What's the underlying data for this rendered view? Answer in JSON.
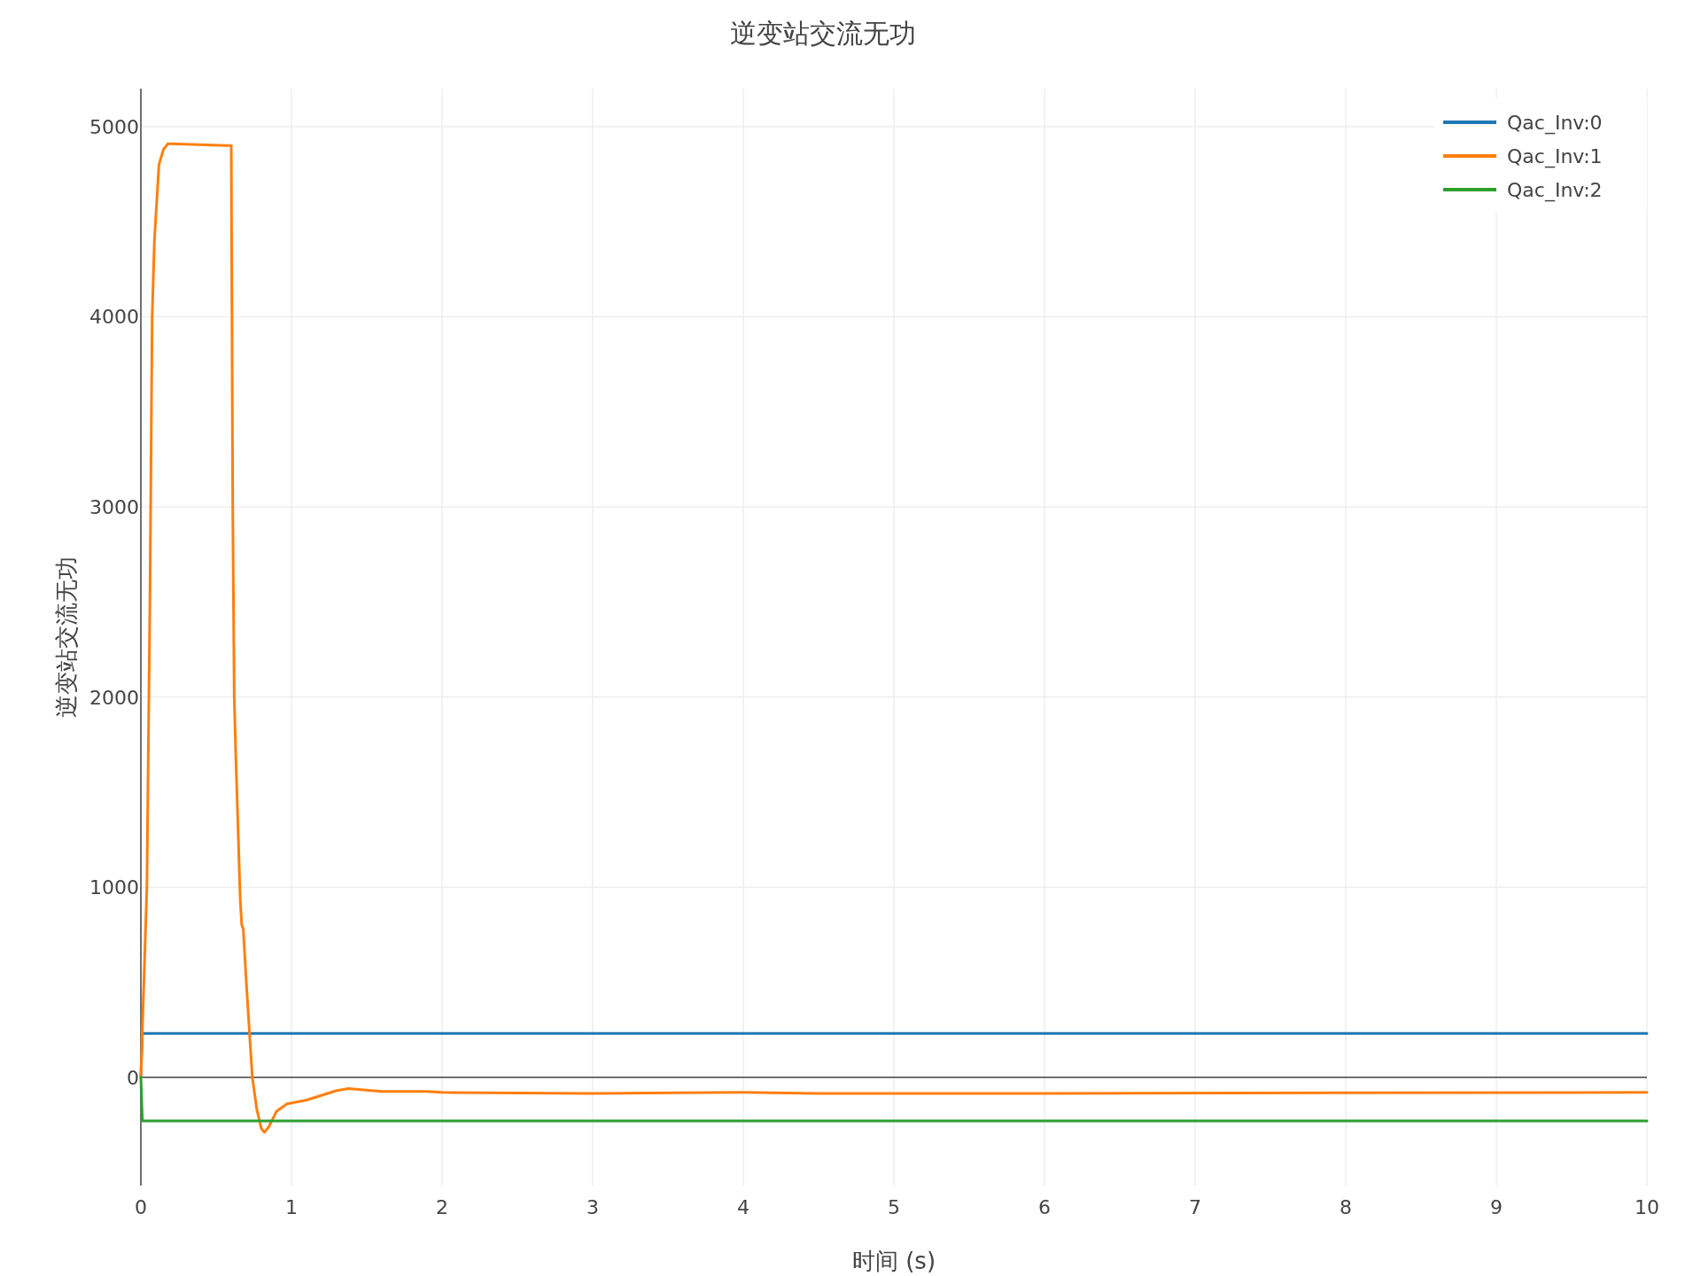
{
  "chart_data": {
    "type": "line",
    "title": "逆变站交流无功",
    "xlabel": "时间 (s)",
    "ylabel": "逆变站交流无功",
    "xlim": [
      0,
      10
    ],
    "ylim": [
      -570,
      5200
    ],
    "xticks": [
      0,
      1,
      2,
      3,
      4,
      5,
      6,
      7,
      8,
      9,
      10
    ],
    "yticks": [
      0,
      1000,
      2000,
      3000,
      4000,
      5000
    ],
    "grid": true,
    "legend": "top right",
    "series": [
      {
        "name": "Qac_Inv:0",
        "color": "#1f77b4",
        "x": [
          0,
          0.01,
          10
        ],
        "values": [
          0,
          230,
          230
        ]
      },
      {
        "name": "Qac_Inv:1",
        "color": "#ff7f0e",
        "x": [
          0,
          0.04,
          0.06,
          0.075,
          0.09,
          0.12,
          0.15,
          0.18,
          0.2,
          0.6,
          0.61,
          0.62,
          0.63,
          0.66,
          0.67,
          0.68,
          0.7,
          0.74,
          0.77,
          0.8,
          0.82,
          0.85,
          0.9,
          0.97,
          1.1,
          1.3,
          1.38,
          1.6,
          1.9,
          2.0,
          3,
          4,
          4.5,
          6,
          8,
          10
        ],
        "values": [
          0,
          1000,
          2500,
          4000,
          4400,
          4800,
          4880,
          4910,
          4910,
          4900,
          3000,
          2000,
          1700,
          930,
          800,
          780,
          500,
          0,
          -170,
          -270,
          -290,
          -260,
          -180,
          -140,
          -120,
          -70,
          -60,
          -75,
          -75,
          -80,
          -85,
          -80,
          -85,
          -85,
          -82,
          -80
        ]
      },
      {
        "name": "Qac_Inv:2",
        "color": "#2ca02c",
        "x": [
          0,
          0.01,
          10
        ],
        "values": [
          0,
          -230,
          -230
        ]
      }
    ]
  }
}
